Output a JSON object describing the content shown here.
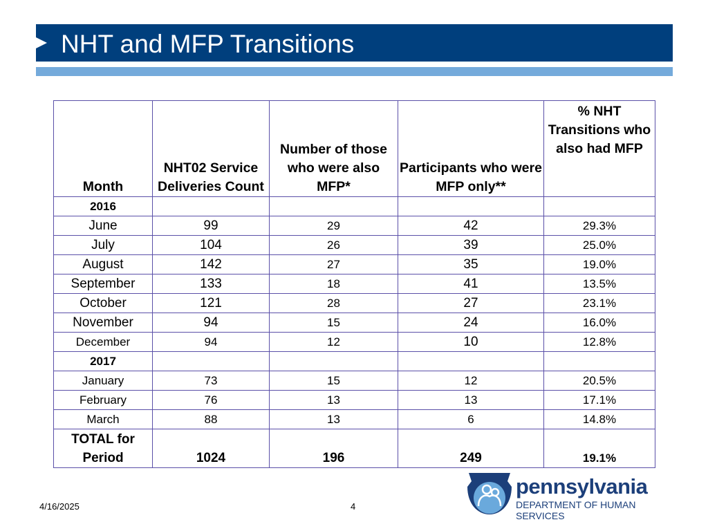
{
  "slide": {
    "title": "NHT and MFP Transitions",
    "date": "4/16/2025",
    "page_number": "4"
  },
  "colors": {
    "title_bar": "#003f7d",
    "accent_bar": "#74aadb",
    "table_border": "#5a4fa8",
    "logo": "#1c3f7a"
  },
  "table": {
    "headers": [
      "Month",
      "NHT02 Service Deliveries Count",
      "Number of those who were also MFP*",
      "Participants who were MFP only**",
      "% NHT Transitions who also had MFP"
    ],
    "years": [
      "2016",
      "2017"
    ],
    "rows_2016": [
      [
        "June",
        "99",
        "29",
        "42",
        "29.3%"
      ],
      [
        "July",
        "104",
        "26",
        "39",
        "25.0%"
      ],
      [
        "August",
        "142",
        "27",
        "35",
        "19.0%"
      ],
      [
        "September",
        "133",
        "18",
        "41",
        "13.5%"
      ],
      [
        "October",
        "121",
        "28",
        "27",
        "23.1%"
      ],
      [
        "November",
        "94",
        "15",
        "24",
        "16.0%"
      ],
      [
        "December",
        "94",
        "12",
        "10",
        "12.8%"
      ]
    ],
    "rows_2017": [
      [
        "January",
        "73",
        "15",
        "12",
        "20.5%"
      ],
      [
        "February",
        "76",
        "13",
        "13",
        "17.1%"
      ],
      [
        "March",
        "88",
        "13",
        "6",
        "14.8%"
      ]
    ],
    "total": [
      "TOTAL for Period",
      "1024",
      "196",
      "249",
      "19.1%"
    ]
  },
  "logo": {
    "name": "pennsylvania",
    "department": "DEPARTMENT OF HUMAN SERVICES"
  }
}
